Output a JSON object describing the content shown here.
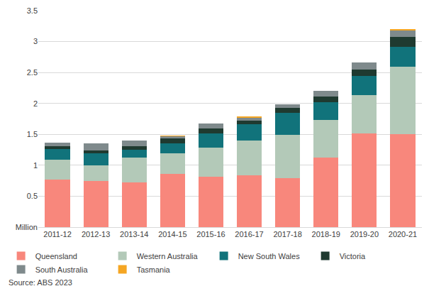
{
  "chart_data": {
    "type": "bar",
    "stacked": true,
    "categories": [
      "2011-12",
      "2012-13",
      "2013-14",
      "2014-15",
      "2015-16",
      "2016-17",
      "2017-18",
      "2018-19",
      "2019-20",
      "2020-21"
    ],
    "series": [
      {
        "name": "Queensland",
        "color": "#f8877c",
        "values": [
          0.77,
          0.75,
          0.72,
          0.86,
          0.81,
          0.84,
          0.79,
          1.12,
          1.51,
          1.5
        ]
      },
      {
        "name": "Western Australia",
        "color": "#b3c9b8",
        "values": [
          0.32,
          0.25,
          0.4,
          0.33,
          0.47,
          0.56,
          0.7,
          0.61,
          0.63,
          1.09
        ]
      },
      {
        "name": "New South Wales",
        "color": "#11737b",
        "values": [
          0.17,
          0.19,
          0.13,
          0.16,
          0.23,
          0.26,
          0.36,
          0.29,
          0.31,
          0.32
        ]
      },
      {
        "name": "Victoria",
        "color": "#1f3a30",
        "values": [
          0.05,
          0.05,
          0.06,
          0.08,
          0.08,
          0.06,
          0.08,
          0.09,
          0.1,
          0.16
        ]
      },
      {
        "name": "South Australia",
        "color": "#7f8a8c",
        "values": [
          0.06,
          0.11,
          0.09,
          0.04,
          0.08,
          0.05,
          0.06,
          0.09,
          0.11,
          0.11
        ]
      },
      {
        "name": "Tasmania",
        "color": "#f5a623",
        "values": [
          0,
          0,
          0,
          0.01,
          0,
          0.01,
          0,
          0,
          0,
          0.02
        ]
      }
    ],
    "ylim": [
      0,
      3.5
    ],
    "yticks": [
      {
        "value": 0,
        "label": "Million"
      },
      0.5,
      1,
      1.5,
      2,
      2.5,
      3,
      3.5
    ],
    "grid": true,
    "legend": "bottom",
    "annotations": [
      "Source: ABS 2023"
    ]
  }
}
